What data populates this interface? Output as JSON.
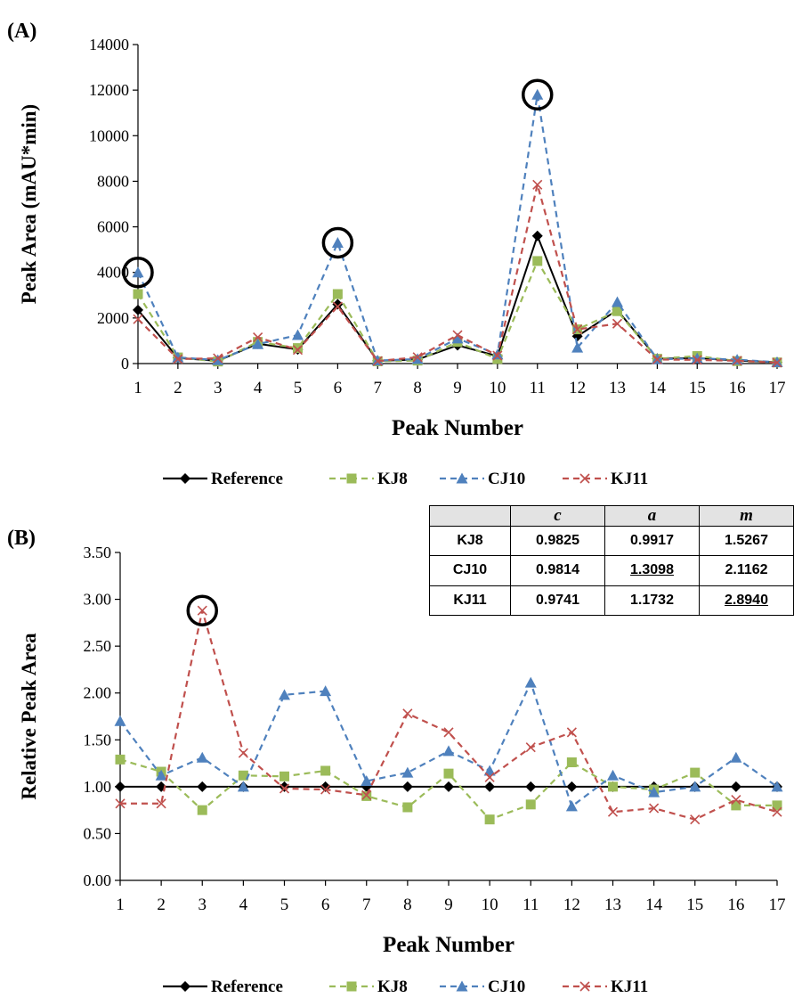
{
  "charts": [
    {
      "panel_label": "(A)",
      "ylabel": "Peak Area (mAU*min)",
      "xlabel": "Peak Number",
      "yticks": [
        "0",
        "2000",
        "4000",
        "6000",
        "8000",
        "10000",
        "12000",
        "14000"
      ]
    },
    {
      "panel_label": "(B)",
      "ylabel": "Relative Peak Area",
      "xlabel": "Peak Number",
      "yticks": [
        "0.00",
        "0.50",
        "1.00",
        "1.50",
        "2.00",
        "2.50",
        "3.00",
        "3.50"
      ]
    }
  ],
  "legend_labels": [
    "Reference",
    "KJ8",
    "CJ10",
    "KJ11"
  ],
  "series_colors": {
    "Reference": "#000000",
    "KJ8": "#9bbb59",
    "CJ10": "#4f81bd",
    "KJ11": "#c0504d"
  },
  "table": {
    "headers": [
      "",
      "c",
      "a",
      "m"
    ],
    "rows": [
      {
        "name": "KJ8",
        "c": "0.9825",
        "a": "0.9917",
        "m": "1.5267"
      },
      {
        "name": "CJ10",
        "c": "0.9814",
        "a": "1.3098",
        "m": "2.1162"
      },
      {
        "name": "KJ11",
        "c": "0.9741",
        "a": "1.1732",
        "m": "2.8940"
      }
    ]
  },
  "chart_data": [
    {
      "type": "line",
      "x": [
        1,
        2,
        3,
        4,
        5,
        6,
        7,
        8,
        9,
        10,
        11,
        12,
        13,
        14,
        15,
        16,
        17
      ],
      "ylim": [
        0,
        14000
      ],
      "grid": false,
      "legend_placement": "bottom",
      "series": [
        {
          "name": "Reference",
          "values": [
            2350,
            250,
            120,
            870,
            620,
            2600,
            120,
            180,
            800,
            330,
            5600,
            1200,
            2350,
            220,
            240,
            130,
            60
          ]
        },
        {
          "name": "KJ8",
          "values": [
            3050,
            270,
            90,
            950,
            680,
            3050,
            100,
            130,
            950,
            200,
            4500,
            1500,
            2300,
            210,
            330,
            110,
            50
          ]
        },
        {
          "name": "CJ10",
          "values": [
            4000,
            270,
            150,
            850,
            1250,
            5300,
            130,
            200,
            1100,
            400,
            11800,
            700,
            2700,
            190,
            230,
            170,
            60
          ]
        },
        {
          "name": "KJ11",
          "values": [
            1950,
            200,
            230,
            1150,
            600,
            2500,
            110,
            280,
            1250,
            350,
            7850,
            1500,
            1750,
            180,
            160,
            120,
            40
          ]
        }
      ],
      "highlighted_points": [
        {
          "series": "CJ10",
          "x": 1,
          "y": 4000
        },
        {
          "series": "CJ10",
          "x": 6,
          "y": 5300
        },
        {
          "series": "CJ10",
          "x": 11,
          "y": 11800
        }
      ]
    },
    {
      "type": "line",
      "x": [
        1,
        2,
        3,
        4,
        5,
        6,
        7,
        8,
        9,
        10,
        11,
        12,
        13,
        14,
        15,
        16,
        17
      ],
      "ylim": [
        0,
        3.5
      ],
      "grid": false,
      "legend_placement": "bottom",
      "series": [
        {
          "name": "Reference",
          "values": [
            1.0,
            1.0,
            1.0,
            1.0,
            1.0,
            1.0,
            1.0,
            1.0,
            1.0,
            1.0,
            1.0,
            1.0,
            1.0,
            1.0,
            1.0,
            1.0,
            1.0
          ]
        },
        {
          "name": "KJ8",
          "values": [
            1.29,
            1.16,
            0.75,
            1.12,
            1.11,
            1.17,
            0.9,
            0.78,
            1.14,
            0.65,
            0.81,
            1.26,
            1.0,
            0.97,
            1.15,
            0.8,
            0.8
          ]
        },
        {
          "name": "CJ10",
          "values": [
            1.7,
            1.12,
            1.31,
            1.0,
            1.98,
            2.02,
            1.06,
            1.15,
            1.38,
            1.17,
            2.11,
            0.79,
            1.12,
            0.94,
            1.0,
            1.31,
            1.0
          ]
        },
        {
          "name": "KJ11",
          "values": [
            0.82,
            0.82,
            2.88,
            1.36,
            0.98,
            0.97,
            0.91,
            1.78,
            1.58,
            1.1,
            1.42,
            1.58,
            0.73,
            0.77,
            0.65,
            0.86,
            0.73
          ]
        }
      ],
      "highlighted_points": [
        {
          "series": "KJ11",
          "x": 3,
          "y": 2.88
        }
      ]
    }
  ]
}
